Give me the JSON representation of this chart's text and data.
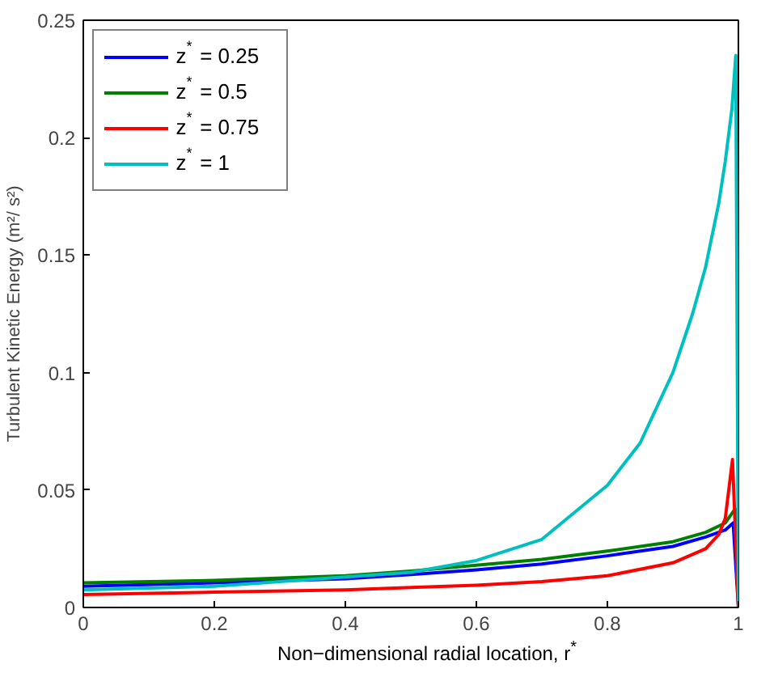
{
  "chart_data": {
    "type": "line",
    "xlabel": "Non−dimensional radial location, r$^{*}$",
    "ylabel": "Turbulent Kinetic Energy (m²/ s²)",
    "xlim": [
      0,
      1
    ],
    "ylim": [
      0,
      0.25
    ],
    "xticks": [
      0,
      0.2,
      0.4,
      0.6,
      0.8,
      1
    ],
    "yticks": [
      0,
      0.05,
      0.1,
      0.15,
      0.2,
      0.25
    ],
    "grid": false,
    "legend": "top left",
    "marker": "none",
    "line_style": "solid",
    "series": [
      {
        "name": "z$^{*}$ = 0.25",
        "color": "#0000ff",
        "x": [
          0,
          0.2,
          0.4,
          0.5,
          0.6,
          0.7,
          0.8,
          0.9,
          0.95,
          0.98,
          0.992,
          1
        ],
        "values": [
          0.009,
          0.0105,
          0.0122,
          0.014,
          0.016,
          0.0185,
          0.022,
          0.026,
          0.03,
          0.033,
          0.036,
          0
        ]
      },
      {
        "name": "z$^{*}$ = 0.5",
        "color": "#008000",
        "x": [
          0,
          0.2,
          0.4,
          0.5,
          0.6,
          0.7,
          0.8,
          0.9,
          0.95,
          0.98,
          0.995,
          1
        ],
        "values": [
          0.0105,
          0.0115,
          0.0135,
          0.0155,
          0.018,
          0.0205,
          0.024,
          0.028,
          0.032,
          0.036,
          0.042,
          0
        ]
      },
      {
        "name": "z$^{*}$ = 0.75",
        "color": "#ff0000",
        "x": [
          0,
          0.2,
          0.4,
          0.5,
          0.6,
          0.7,
          0.8,
          0.9,
          0.95,
          0.97,
          0.98,
          0.991,
          1
        ],
        "values": [
          0.0055,
          0.0065,
          0.0075,
          0.0085,
          0.0095,
          0.011,
          0.0135,
          0.019,
          0.025,
          0.031,
          0.038,
          0.063,
          0
        ]
      },
      {
        "name": "z$^{*}$ = 1",
        "color": "#00bfbf",
        "x": [
          0,
          0.2,
          0.4,
          0.5,
          0.6,
          0.7,
          0.8,
          0.85,
          0.9,
          0.93,
          0.95,
          0.97,
          0.98,
          0.99,
          0.996,
          1
        ],
        "values": [
          0.0075,
          0.009,
          0.013,
          0.015,
          0.02,
          0.029,
          0.052,
          0.07,
          0.1,
          0.125,
          0.145,
          0.172,
          0.19,
          0.212,
          0.235,
          0
        ]
      }
    ]
  }
}
